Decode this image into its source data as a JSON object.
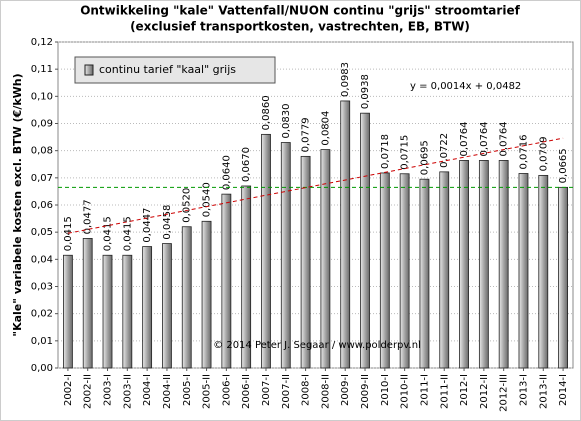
{
  "chart_data": {
    "type": "bar",
    "title": "Ontwikkeling  \"kale\" Vattenfall/NUON continu \"grijs\" stroomtarief",
    "subtitle": "(exclusief  transportkosten, vastrechten, EB, BTW)",
    "y_label": "\"Kale\" variabele kosten excl. BTW (€/kWh)",
    "annotation": "© 2014 Peter J. Segaar / www.polderpv.nl",
    "categories": [
      "2002-I",
      "2002-II",
      "2003-I",
      "2003-II",
      "2004-I",
      "2004-II",
      "2005-I",
      "2005-II",
      "2006-I",
      "2006-II",
      "2007-I",
      "2007-II",
      "2008-I",
      "2008-II",
      "2009-I",
      "2009-II",
      "2010-I",
      "2010-II",
      "2011-I",
      "2011-II",
      "2012-I",
      "2012-II",
      "2012-III",
      "2013-I",
      "2013-II",
      "2014-I"
    ],
    "series": [
      {
        "name": "continu tarief \"kaal\" grijs",
        "color": "#a6a6a6",
        "values": [
          0.0415,
          0.0477,
          0.0415,
          0.0415,
          0.0447,
          0.0458,
          0.052,
          0.054,
          0.064,
          0.067,
          0.086,
          0.083,
          0.0779,
          0.0804,
          0.0983,
          0.0938,
          0.0718,
          0.0715,
          0.0695,
          0.0722,
          0.0764,
          0.0764,
          0.0764,
          0.0716,
          0.0709,
          0.0665
        ],
        "value_labels": [
          "0,0415",
          "0,0477",
          "0,0415",
          "0,0415",
          "0,0447",
          "0,0458",
          "0,0520",
          "0,0540",
          "0,0640",
          "0,0670",
          "0,0860",
          "0,0830",
          "0,0779",
          "0,0804",
          "0,0983",
          "0,0938",
          "0,0718",
          "0,0715",
          "0,0695",
          "0,0722",
          "0,0764",
          "0,0764",
          "0,0764",
          "0,0716",
          "0,0709",
          "0,0665"
        ]
      }
    ],
    "trendline": {
      "label": "y = 0,0014x + 0,0482",
      "slope": 0.0014,
      "intercept": 0.0482,
      "color": "#cc0000"
    },
    "reference_line": {
      "value": 0.0665,
      "color": "#009900"
    },
    "ylim": [
      0,
      0.12
    ],
    "yticks": [
      {
        "value": 0,
        "label": "0,00"
      },
      {
        "value": 0.01,
        "label": "0,01"
      },
      {
        "value": 0.02,
        "label": "0,02"
      },
      {
        "value": 0.03,
        "label": "0,03"
      },
      {
        "value": 0.04,
        "label": "0,04"
      },
      {
        "value": 0.05,
        "label": "0,05"
      },
      {
        "value": 0.06,
        "label": "0,06"
      },
      {
        "value": 0.07,
        "label": "0,07"
      },
      {
        "value": 0.08,
        "label": "0,08"
      },
      {
        "value": 0.09,
        "label": "0,09"
      },
      {
        "value": 0.1,
        "label": "0,10"
      },
      {
        "value": 0.11,
        "label": "0,11"
      },
      {
        "value": 0.12,
        "label": "0,12"
      }
    ],
    "grid": true
  }
}
